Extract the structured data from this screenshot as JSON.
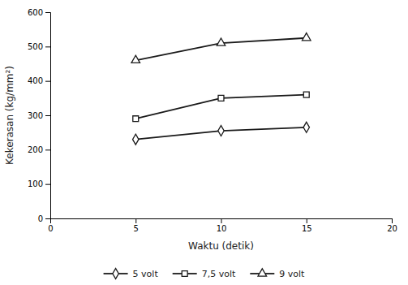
{
  "chart_data": {
    "type": "line",
    "x": [
      5,
      10,
      15
    ],
    "series": [
      {
        "name": "5 volt",
        "color": "#1a1a1a",
        "marker": "diamond",
        "values": [
          230,
          255,
          265
        ]
      },
      {
        "name": "7,5 volt",
        "color": "#1a1a1a",
        "marker": "square",
        "values": [
          290,
          350,
          360
        ]
      },
      {
        "name": "9 volt",
        "color": "#1a1a1a",
        "marker": "triangle",
        "values": [
          460,
          510,
          525
        ]
      }
    ],
    "xlabel": "Waktu (detik)",
    "ylabel": "Kekerasan (kg/mm²)",
    "xlim": [
      0,
      20
    ],
    "ylim": [
      0,
      600
    ],
    "xticks": [
      0,
      5,
      10,
      15,
      20
    ],
    "yticks": [
      0,
      100,
      200,
      300,
      400,
      500,
      600
    ],
    "grid": false,
    "legend": "bottom"
  }
}
